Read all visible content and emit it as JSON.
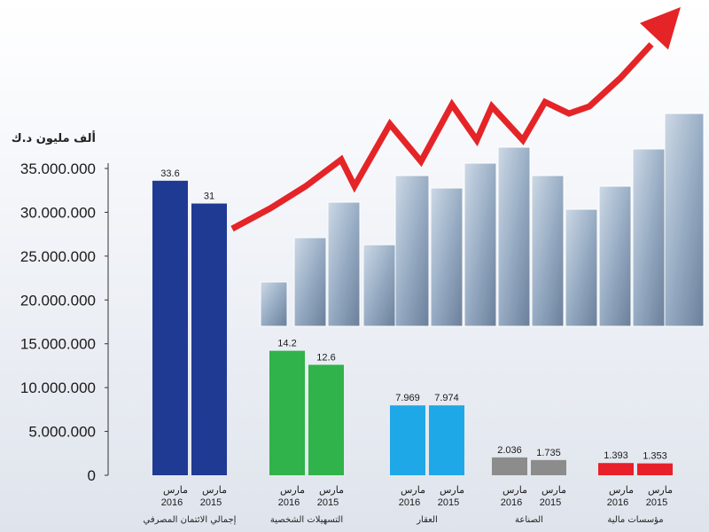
{
  "chart_data": {
    "type": "bar",
    "unit_label": "ألف مليون د.ك",
    "ylim": [
      0,
      35000000
    ],
    "y_ticks": [
      "0",
      "5.000.000",
      "10.000.000",
      "15.000.000",
      "20.000.000",
      "25.000.000",
      "30.000.000",
      "35.000.000"
    ],
    "categories": [
      "إجمالي الائتمان المصرفي",
      "التسهيلات الشخصية",
      "العقار",
      "الصناعة",
      "مؤسسات مالية"
    ],
    "series": [
      {
        "name": "مارس 2016",
        "line1": "مارس",
        "line2": "2016",
        "color": "#1f3a93",
        "values": [
          33.6,
          14.2,
          7.969,
          2.036,
          1.393
        ],
        "labels": [
          "33.6",
          "14.2",
          "7.969",
          "2.036",
          "1.393"
        ],
        "bar_values": [
          33600000,
          14200000,
          7969000,
          2036000,
          1393000
        ]
      },
      {
        "name": "مارس 2015",
        "line1": "مارس",
        "line2": "2015",
        "color": "#1f3a93",
        "values": [
          31,
          12.6,
          7.974,
          1.735,
          1.353
        ],
        "labels": [
          "31",
          "12.6",
          "7.974",
          "1.735",
          "1.353"
        ],
        "bar_values": [
          31000000,
          12600000,
          7974000,
          1735000,
          1353000
        ]
      }
    ],
    "category_colors": [
      "#1f3a93",
      "#2fb34a",
      "#1fa8e8",
      "#8c8c8c",
      "#e8202a"
    ],
    "grid": false,
    "background_graphic": "rising-red-arrow-over-banknote-bars"
  }
}
